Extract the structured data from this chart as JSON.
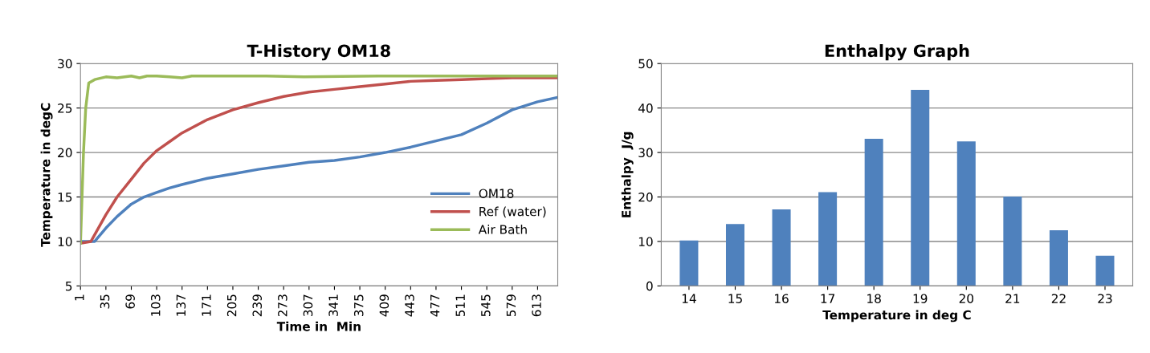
{
  "chart_data": [
    {
      "type": "line",
      "title": "T-History OM18",
      "xlabel": "Time in  Min",
      "ylabel": "Temperature in degC",
      "xlim": [
        1,
        640
      ],
      "xticks": [
        1,
        35,
        69,
        103,
        137,
        171,
        205,
        239,
        273,
        307,
        341,
        375,
        409,
        443,
        477,
        511,
        545,
        579,
        613
      ],
      "ylim": [
        5,
        30
      ],
      "yticks": [
        5,
        10,
        15,
        20,
        25,
        30
      ],
      "grid": "y",
      "legend": "right",
      "marker": "none",
      "line_style": "solid",
      "series": [
        {
          "name": "OM18",
          "color": "#4f81bd",
          "x": [
            1,
            20,
            35,
            50,
            69,
            86,
            103,
            120,
            137,
            171,
            205,
            239,
            273,
            307,
            341,
            375,
            409,
            443,
            477,
            511,
            545,
            579,
            613,
            640
          ],
          "values": [
            10,
            10,
            11.5,
            12.8,
            14.2,
            15,
            15.5,
            16,
            16.4,
            17.1,
            17.6,
            18.1,
            18.5,
            18.9,
            19.1,
            19.5,
            20,
            20.6,
            21.3,
            22,
            23.3,
            24.8,
            25.7,
            26.2
          ]
        },
        {
          "name": "Ref (water)",
          "color": "#c0504d",
          "x": [
            1,
            15,
            35,
            50,
            69,
            86,
            103,
            120,
            137,
            171,
            205,
            239,
            273,
            307,
            341,
            375,
            409,
            443,
            477,
            511,
            545,
            579,
            640
          ],
          "values": [
            9.8,
            10,
            13,
            15,
            17,
            18.8,
            20.2,
            21.2,
            22.2,
            23.7,
            24.8,
            25.6,
            26.3,
            26.8,
            27.1,
            27.4,
            27.7,
            28,
            28.1,
            28.2,
            28.3,
            28.4,
            28.4
          ]
        },
        {
          "name": "Air Bath",
          "color": "#9bbb59",
          "x": [
            1,
            5,
            8,
            12,
            20,
            35,
            50,
            69,
            80,
            90,
            103,
            120,
            137,
            150,
            171,
            250,
            300,
            400,
            500,
            640
          ],
          "values": [
            9.8,
            20,
            25,
            27.8,
            28.2,
            28.5,
            28.4,
            28.6,
            28.4,
            28.6,
            28.6,
            28.5,
            28.4,
            28.6,
            28.6,
            28.6,
            28.5,
            28.6,
            28.6,
            28.6
          ]
        }
      ]
    },
    {
      "type": "bar",
      "title": "Enthalpy Graph",
      "xlabel": "Temperature in deg C",
      "ylabel": "Enthalpy  J/g",
      "categories": [
        "14",
        "15",
        "16",
        "17",
        "18",
        "19",
        "20",
        "21",
        "22",
        "23"
      ],
      "values": [
        10.2,
        13.9,
        17.2,
        21.1,
        33.1,
        44.1,
        32.5,
        20.1,
        12.5,
        6.8
      ],
      "color": "#4f81bd",
      "ylim": [
        0,
        50
      ],
      "yticks": [
        0,
        10,
        20,
        30,
        40,
        50
      ],
      "grid": "y"
    }
  ]
}
